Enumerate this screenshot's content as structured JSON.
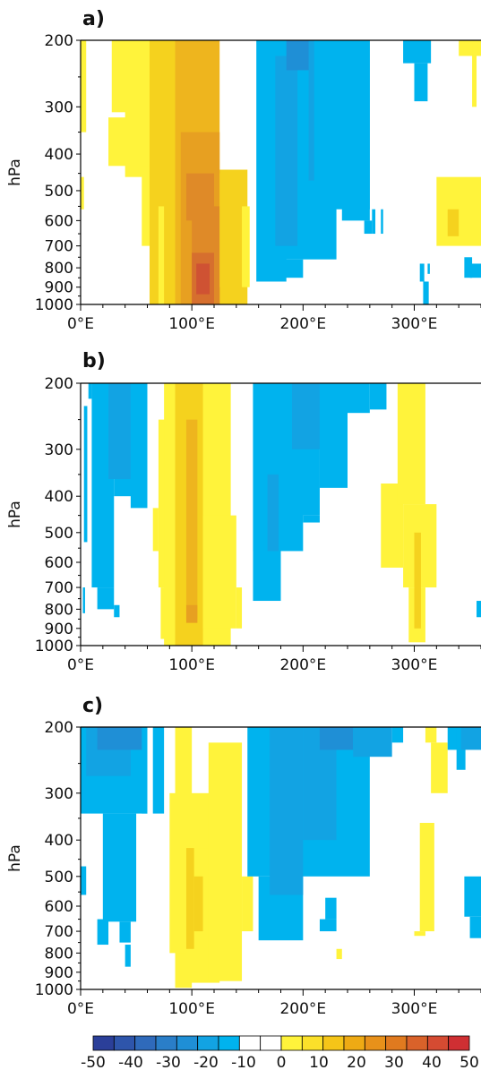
{
  "chart_data": [
    {
      "type": "heatmap",
      "panel_label": "a)",
      "ylabel": "hPa",
      "xlabel": "",
      "x_ticks": [
        "0°E",
        "100°E",
        "200°E",
        "300°E"
      ],
      "y_ticks": [
        "200",
        "300",
        "400",
        "500",
        "600",
        "700",
        "800",
        "900",
        "1000"
      ],
      "xlim": [
        0,
        360
      ],
      "ylim": [
        1000,
        200
      ],
      "y_scale": "log",
      "cells": [
        {
          "x0": 0,
          "x1": 5,
          "p0": 200,
          "p1": 350,
          "v": 10
        },
        {
          "x0": 0,
          "x1": 3,
          "p0": 460,
          "p1": 560,
          "v": 10
        },
        {
          "x0": 28,
          "x1": 47,
          "p0": 200,
          "p1": 310,
          "v": 10
        },
        {
          "x0": 25,
          "x1": 55,
          "p0": 320,
          "p1": 430,
          "v": 10
        },
        {
          "x0": 40,
          "x1": 70,
          "p0": 200,
          "p1": 460,
          "v": 10
        },
        {
          "x0": 55,
          "x1": 80,
          "p0": 430,
          "p1": 700,
          "v": 10
        },
        {
          "x0": 62,
          "x1": 100,
          "p0": 200,
          "p1": 1000,
          "v": 15
        },
        {
          "x0": 70,
          "x1": 85,
          "p0": 550,
          "p1": 1000,
          "v": 10
        },
        {
          "x0": 75,
          "x1": 150,
          "p0": 440,
          "p1": 1000,
          "v": 15
        },
        {
          "x0": 85,
          "x1": 125,
          "p0": 200,
          "p1": 1000,
          "v": 20
        },
        {
          "x0": 90,
          "x1": 125,
          "p0": 350,
          "p1": 1000,
          "v": 25
        },
        {
          "x0": 95,
          "x1": 120,
          "p0": 450,
          "p1": 600,
          "v": 30
        },
        {
          "x0": 100,
          "x1": 125,
          "p0": 550,
          "p1": 1000,
          "v": 30
        },
        {
          "x0": 100,
          "x1": 120,
          "p0": 730,
          "p1": 1000,
          "v": 35
        },
        {
          "x0": 104,
          "x1": 116,
          "p0": 780,
          "p1": 940,
          "v": 40
        },
        {
          "x0": 125,
          "x1": 145,
          "p0": 450,
          "p1": 900,
          "v": 15
        },
        {
          "x0": 145,
          "x1": 152,
          "p0": 550,
          "p1": 900,
          "v": 10
        },
        {
          "x0": 158,
          "x1": 185,
          "p0": 200,
          "p1": 870,
          "v": -10
        },
        {
          "x0": 170,
          "x1": 230,
          "p0": 200,
          "p1": 760,
          "v": -10
        },
        {
          "x0": 180,
          "x1": 200,
          "p0": 760,
          "p1": 850,
          "v": -10
        },
        {
          "x0": 175,
          "x1": 195,
          "p0": 220,
          "p1": 700,
          "v": -15
        },
        {
          "x0": 185,
          "x1": 210,
          "p0": 200,
          "p1": 240,
          "v": -20
        },
        {
          "x0": 205,
          "x1": 240,
          "p0": 200,
          "p1": 470,
          "v": -15
        },
        {
          "x0": 210,
          "x1": 260,
          "p0": 200,
          "p1": 560,
          "v": -10
        },
        {
          "x0": 235,
          "x1": 260,
          "p0": 200,
          "p1": 600,
          "v": -10
        },
        {
          "x0": 255,
          "x1": 262,
          "p0": 600,
          "p1": 650,
          "v": -10
        },
        {
          "x0": 262,
          "x1": 265,
          "p0": 560,
          "p1": 650,
          "v": -10
        },
        {
          "x0": 270,
          "x1": 272,
          "p0": 560,
          "p1": 650,
          "v": -10
        },
        {
          "x0": 290,
          "x1": 315,
          "p0": 200,
          "p1": 230,
          "v": -10
        },
        {
          "x0": 300,
          "x1": 312,
          "p0": 230,
          "p1": 290,
          "v": -10
        },
        {
          "x0": 305,
          "x1": 309,
          "p0": 780,
          "p1": 870,
          "v": -10
        },
        {
          "x0": 308,
          "x1": 313,
          "p0": 870,
          "p1": 1000,
          "v": -10
        },
        {
          "x0": 312,
          "x1": 314,
          "p0": 780,
          "p1": 830,
          "v": -10
        },
        {
          "x0": 320,
          "x1": 360,
          "p0": 460,
          "p1": 700,
          "v": 10
        },
        {
          "x0": 330,
          "x1": 340,
          "p0": 560,
          "p1": 660,
          "v": 15
        },
        {
          "x0": 340,
          "x1": 360,
          "p0": 200,
          "p1": 220,
          "v": 10
        },
        {
          "x0": 352,
          "x1": 356,
          "p0": 200,
          "p1": 300,
          "v": 10
        },
        {
          "x0": 345,
          "x1": 352,
          "p0": 750,
          "p1": 850,
          "v": -10
        },
        {
          "x0": 350,
          "x1": 360,
          "p0": 780,
          "p1": 850,
          "v": -10
        }
      ]
    },
    {
      "type": "heatmap",
      "panel_label": "b)",
      "ylabel": "hPa",
      "xlabel": "",
      "x_ticks": [
        "0°E",
        "100°E",
        "200°E",
        "300°E"
      ],
      "y_ticks": [
        "200",
        "300",
        "400",
        "500",
        "600",
        "700",
        "800",
        "900",
        "1000"
      ],
      "xlim": [
        0,
        360
      ],
      "ylim": [
        1000,
        200
      ],
      "y_scale": "log",
      "cells": [
        {
          "x0": 3,
          "x1": 6,
          "p0": 230,
          "p1": 530,
          "v": -10
        },
        {
          "x0": 7,
          "x1": 10,
          "p0": 200,
          "p1": 220,
          "v": -10
        },
        {
          "x0": 10,
          "x1": 30,
          "p0": 200,
          "p1": 700,
          "v": -10
        },
        {
          "x0": 15,
          "x1": 30,
          "p0": 700,
          "p1": 800,
          "v": -10
        },
        {
          "x0": 30,
          "x1": 50,
          "p0": 200,
          "p1": 400,
          "v": -10
        },
        {
          "x0": 25,
          "x1": 45,
          "p0": 200,
          "p1": 360,
          "v": -15
        },
        {
          "x0": 45,
          "x1": 60,
          "p0": 200,
          "p1": 430,
          "v": -10
        },
        {
          "x0": 30,
          "x1": 35,
          "p0": 780,
          "p1": 840,
          "v": -10
        },
        {
          "x0": 2,
          "x1": 4,
          "p0": 700,
          "p1": 820,
          "v": -10
        },
        {
          "x0": 65,
          "x1": 70,
          "p0": 430,
          "p1": 560,
          "v": 10
        },
        {
          "x0": 70,
          "x1": 78,
          "p0": 250,
          "p1": 700,
          "v": 10
        },
        {
          "x0": 72,
          "x1": 95,
          "p0": 700,
          "p1": 960,
          "v": 10
        },
        {
          "x0": 75,
          "x1": 135,
          "p0": 200,
          "p1": 1000,
          "v": 10
        },
        {
          "x0": 85,
          "x1": 110,
          "p0": 200,
          "p1": 1000,
          "v": 15
        },
        {
          "x0": 95,
          "x1": 105,
          "p0": 250,
          "p1": 850,
          "v": 20
        },
        {
          "x0": 95,
          "x1": 105,
          "p0": 780,
          "p1": 870,
          "v": 25
        },
        {
          "x0": 110,
          "x1": 140,
          "p0": 450,
          "p1": 900,
          "v": 10
        },
        {
          "x0": 140,
          "x1": 145,
          "p0": 700,
          "p1": 900,
          "v": 10
        },
        {
          "x0": 155,
          "x1": 200,
          "p0": 200,
          "p1": 560,
          "v": -10
        },
        {
          "x0": 155,
          "x1": 180,
          "p0": 200,
          "p1": 760,
          "v": -10
        },
        {
          "x0": 168,
          "x1": 178,
          "p0": 350,
          "p1": 560,
          "v": -15
        },
        {
          "x0": 180,
          "x1": 215,
          "p0": 200,
          "p1": 450,
          "v": -10
        },
        {
          "x0": 190,
          "x1": 220,
          "p0": 200,
          "p1": 300,
          "v": -15
        },
        {
          "x0": 215,
          "x1": 240,
          "p0": 200,
          "p1": 380,
          "v": -10
        },
        {
          "x0": 240,
          "x1": 260,
          "p0": 200,
          "p1": 240,
          "v": -10
        },
        {
          "x0": 260,
          "x1": 275,
          "p0": 200,
          "p1": 235,
          "v": -10
        },
        {
          "x0": 200,
          "x1": 215,
          "p0": 450,
          "p1": 470,
          "v": -10
        },
        {
          "x0": 270,
          "x1": 290,
          "p0": 370,
          "p1": 620,
          "v": 10
        },
        {
          "x0": 285,
          "x1": 310,
          "p0": 200,
          "p1": 420,
          "v": 10
        },
        {
          "x0": 290,
          "x1": 320,
          "p0": 420,
          "p1": 700,
          "v": 10
        },
        {
          "x0": 295,
          "x1": 310,
          "p0": 700,
          "p1": 980,
          "v": 10
        },
        {
          "x0": 300,
          "x1": 306,
          "p0": 500,
          "p1": 900,
          "v": 15
        },
        {
          "x0": 356,
          "x1": 360,
          "p0": 760,
          "p1": 840,
          "v": -10
        }
      ]
    },
    {
      "type": "heatmap",
      "panel_label": "c)",
      "ylabel": "hPa",
      "xlabel": "",
      "x_ticks": [
        "0°E",
        "100°E",
        "200°E",
        "300°E"
      ],
      "y_ticks": [
        "200",
        "300",
        "400",
        "500",
        "600",
        "700",
        "800",
        "900",
        "1000"
      ],
      "xlim": [
        0,
        360
      ],
      "ylim": [
        1000,
        200
      ],
      "y_scale": "log",
      "cells": [
        {
          "x0": 0,
          "x1": 60,
          "p0": 200,
          "p1": 340,
          "v": -10
        },
        {
          "x0": 5,
          "x1": 45,
          "p0": 200,
          "p1": 270,
          "v": -15
        },
        {
          "x0": 15,
          "x1": 55,
          "p0": 200,
          "p1": 230,
          "v": -20
        },
        {
          "x0": 20,
          "x1": 50,
          "p0": 340,
          "p1": 660,
          "v": -10
        },
        {
          "x0": 0,
          "x1": 5,
          "p0": 470,
          "p1": 560,
          "v": -10
        },
        {
          "x0": 15,
          "x1": 25,
          "p0": 650,
          "p1": 760,
          "v": -10
        },
        {
          "x0": 35,
          "x1": 45,
          "p0": 660,
          "p1": 750,
          "v": -10
        },
        {
          "x0": 40,
          "x1": 45,
          "p0": 760,
          "p1": 870,
          "v": -10
        },
        {
          "x0": 55,
          "x1": 60,
          "p0": 250,
          "p1": 340,
          "v": -10
        },
        {
          "x0": 65,
          "x1": 75,
          "p0": 200,
          "p1": 340,
          "v": -10
        },
        {
          "x0": 85,
          "x1": 100,
          "p0": 200,
          "p1": 990,
          "v": 10
        },
        {
          "x0": 80,
          "x1": 120,
          "p0": 300,
          "p1": 800,
          "v": 10
        },
        {
          "x0": 95,
          "x1": 125,
          "p0": 420,
          "p1": 960,
          "v": 10
        },
        {
          "x0": 115,
          "x1": 145,
          "p0": 220,
          "p1": 950,
          "v": 10
        },
        {
          "x0": 95,
          "x1": 102,
          "p0": 420,
          "p1": 780,
          "v": 15
        },
        {
          "x0": 102,
          "x1": 110,
          "p0": 500,
          "p1": 700,
          "v": 15
        },
        {
          "x0": 145,
          "x1": 155,
          "p0": 500,
          "p1": 700,
          "v": 10
        },
        {
          "x0": 150,
          "x1": 260,
          "p0": 200,
          "p1": 500,
          "v": -10
        },
        {
          "x0": 160,
          "x1": 200,
          "p0": 500,
          "p1": 740,
          "v": -10
        },
        {
          "x0": 170,
          "x1": 200,
          "p0": 200,
          "p1": 560,
          "v": -15
        },
        {
          "x0": 200,
          "x1": 230,
          "p0": 200,
          "p1": 400,
          "v": -15
        },
        {
          "x0": 215,
          "x1": 245,
          "p0": 200,
          "p1": 230,
          "v": -20
        },
        {
          "x0": 245,
          "x1": 280,
          "p0": 200,
          "p1": 240,
          "v": -15
        },
        {
          "x0": 280,
          "x1": 290,
          "p0": 200,
          "p1": 220,
          "v": -10
        },
        {
          "x0": 210,
          "x1": 220,
          "p0": 400,
          "p1": 470,
          "v": -10
        },
        {
          "x0": 220,
          "x1": 230,
          "p0": 570,
          "p1": 650,
          "v": -10
        },
        {
          "x0": 215,
          "x1": 230,
          "p0": 650,
          "p1": 700,
          "v": -10
        },
        {
          "x0": 230,
          "x1": 235,
          "p0": 780,
          "p1": 830,
          "v": 10
        },
        {
          "x0": 310,
          "x1": 320,
          "p0": 200,
          "p1": 220,
          "v": 10
        },
        {
          "x0": 315,
          "x1": 330,
          "p0": 220,
          "p1": 300,
          "v": 10
        },
        {
          "x0": 305,
          "x1": 318,
          "p0": 360,
          "p1": 700,
          "v": 10
        },
        {
          "x0": 300,
          "x1": 310,
          "p0": 700,
          "p1": 720,
          "v": 10
        },
        {
          "x0": 330,
          "x1": 345,
          "p0": 200,
          "p1": 230,
          "v": -10
        },
        {
          "x0": 338,
          "x1": 346,
          "p0": 200,
          "p1": 260,
          "v": -10
        },
        {
          "x0": 342,
          "x1": 360,
          "p0": 200,
          "p1": 230,
          "v": -15
        },
        {
          "x0": 345,
          "x1": 360,
          "p0": 500,
          "p1": 640,
          "v": -10
        },
        {
          "x0": 350,
          "x1": 360,
          "p0": 640,
          "p1": 730,
          "v": -10
        }
      ]
    }
  ],
  "colorbar": {
    "labels": [
      "-50",
      "-40",
      "-30",
      "-20",
      "-10",
      "0",
      "10",
      "20",
      "30",
      "40",
      "50"
    ],
    "colors": [
      "#2b3f99",
      "#2e55ab",
      "#2f6abb",
      "#2a7ec8",
      "#1f8fd6",
      "#12a3e3",
      "#00b3ee",
      "#ffffff",
      "#ffffff",
      "#fff33b",
      "#fbe02a",
      "#f5c518",
      "#eeaa14",
      "#e8911a",
      "#e07a1f",
      "#d9622a",
      "#d54b32",
      "#cf2f33"
    ]
  }
}
